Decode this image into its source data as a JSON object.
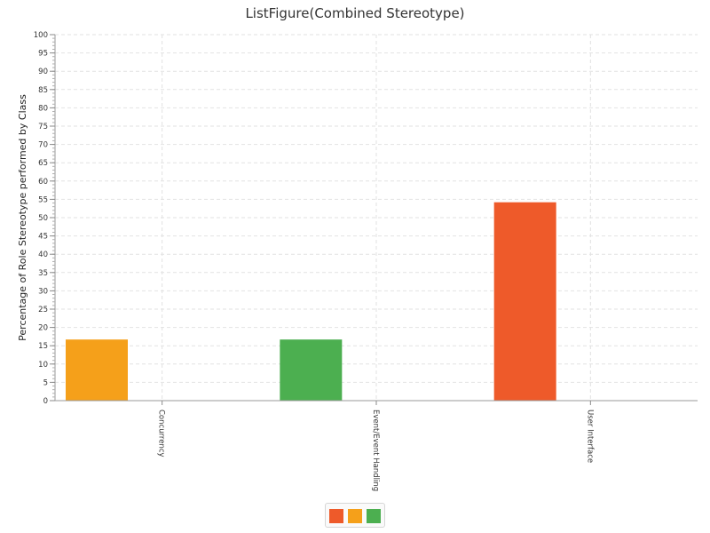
{
  "chart_data": {
    "type": "bar",
    "title": "ListFigure(Combined Stereotype)",
    "xlabel": "",
    "ylabel": "Percentage of Role Stereotype performed by Class",
    "categories": [
      "Concurrency",
      "Event/Event Handling",
      "User Interface"
    ],
    "ylim": [
      0,
      100
    ],
    "ytick_step": 5,
    "grid": true,
    "bars": [
      {
        "category": "Concurrency",
        "value": 16.7,
        "color": "#f5a01a"
      },
      {
        "category": "Event/Event Handling",
        "value": 16.7,
        "color": "#4caf50"
      },
      {
        "category": "User Interface",
        "value": 54.2,
        "color": "#ee5a2a"
      }
    ],
    "legend": {
      "position": "bottom-center",
      "colors": [
        "#ee5a2a",
        "#f5a01a",
        "#4caf50"
      ]
    }
  }
}
